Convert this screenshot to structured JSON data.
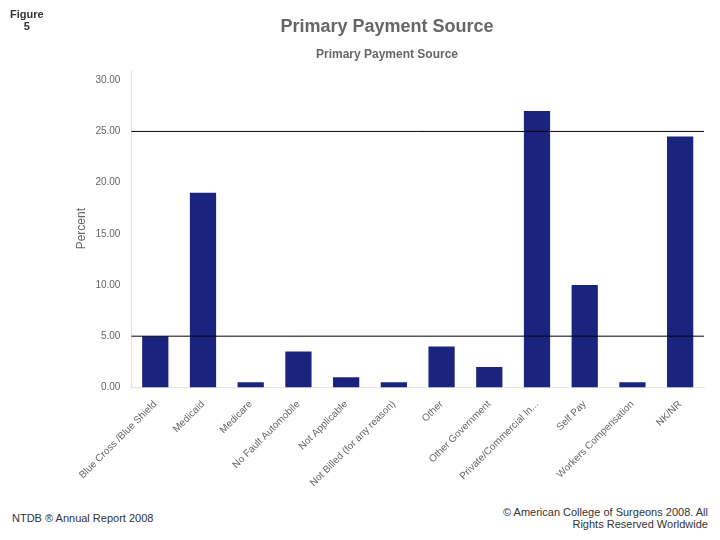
{
  "chart_data": {
    "type": "bar",
    "title": "Primary Payment Source",
    "subtitle": "Primary Payment Source",
    "y_label": "Percent",
    "categories": [
      "Blue Cross /Blue Shield",
      "Medicaid",
      "Medicare",
      "No Fault Automobile",
      "Not Applicable",
      "Not Billed (for any reason)",
      "Other",
      "Other Government",
      "Private/Commercial In...",
      "Self Pay",
      "Workers Compensation",
      "NK/NR"
    ],
    "values": [
      5.0,
      19.0,
      0.5,
      3.5,
      1.0,
      0.5,
      4.0,
      2.0,
      27.0,
      10.0,
      0.5,
      24.5
    ],
    "color": "#1a237e",
    "ylim": [
      0,
      31
    ],
    "yticks": [
      {
        "value": 0,
        "label": "0.00"
      },
      {
        "value": 5,
        "label": "5.00"
      },
      {
        "value": 10,
        "label": "10.00"
      },
      {
        "value": 15,
        "label": "15.00"
      },
      {
        "value": 20,
        "label": "20.00"
      },
      {
        "value": 25,
        "label": "25.00"
      },
      {
        "value": 30,
        "label": "30.00"
      }
    ],
    "hlines": [
      {
        "value": 5.0,
        "color": "#000000"
      },
      {
        "value": 25.0,
        "color": "#000000"
      }
    ],
    "grid": false,
    "figure_label": "Figure\n5",
    "footer_left": "NTDB ® Annual Report 2008",
    "footer_right": "© American College of Surgeons 2008.  All\nRights Reserved Worldwide"
  }
}
